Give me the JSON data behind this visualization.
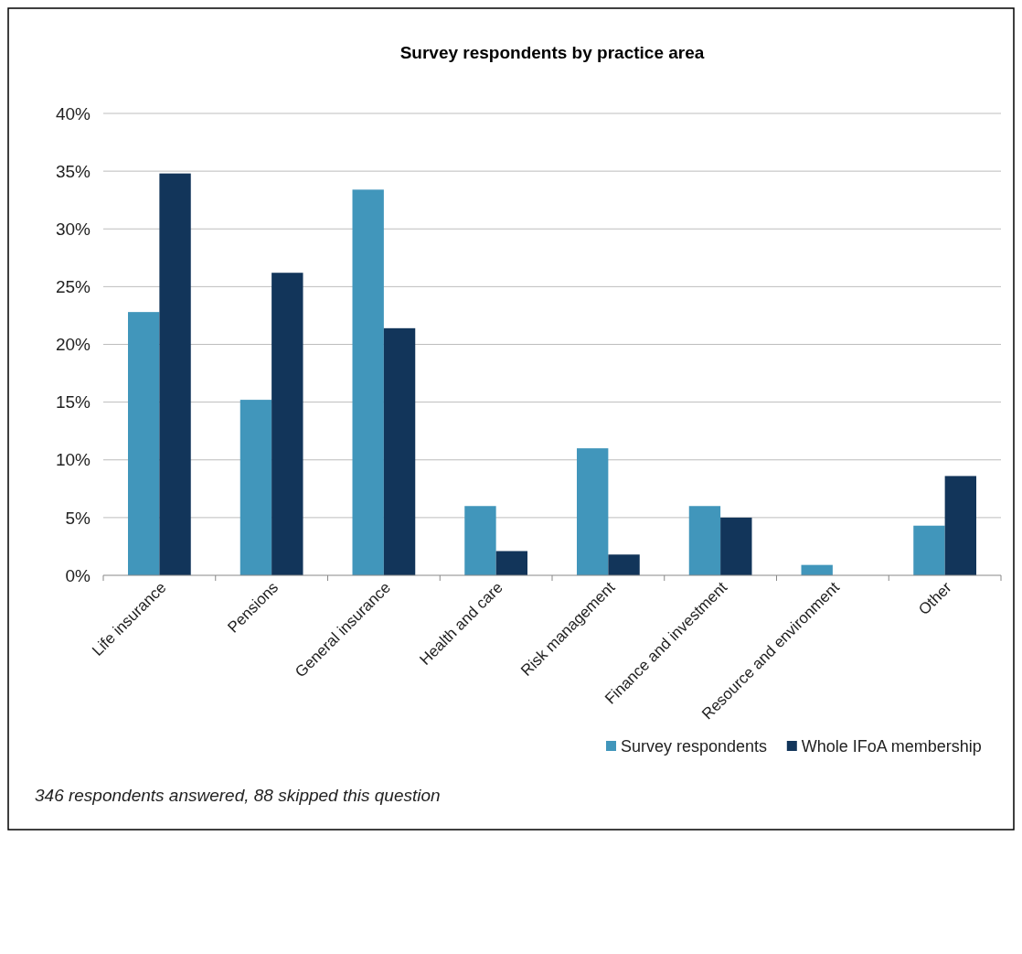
{
  "chart_data": {
    "type": "bar",
    "title": "Survey respondents by practice area",
    "categories": [
      "Life insurance",
      "Pensions",
      "General insurance",
      "Health and care",
      "Risk management",
      "Finance and investment",
      "Resource and environment",
      "Other"
    ],
    "series": [
      {
        "name": "Survey respondents",
        "color": "#4196bb",
        "values": [
          22.8,
          15.2,
          33.4,
          6.0,
          11.0,
          6.0,
          0.9,
          4.3
        ]
      },
      {
        "name": "Whole IFoA membership",
        "color": "#12355a",
        "values": [
          34.8,
          26.2,
          21.4,
          2.1,
          1.8,
          5.0,
          0,
          8.6
        ]
      }
    ],
    "ylim": [
      0,
      40
    ],
    "yticks": [
      {
        "value": 0,
        "label": "0%"
      },
      {
        "value": 5,
        "label": "5%"
      },
      {
        "value": 10,
        "label": "10%"
      },
      {
        "value": 15,
        "label": "15%"
      },
      {
        "value": 20,
        "label": "20%"
      },
      {
        "value": 25,
        "label": "25%"
      },
      {
        "value": 30,
        "label": "30%"
      },
      {
        "value": 35,
        "label": "35%"
      },
      {
        "value": 40,
        "label": "40%"
      }
    ],
    "grid": "y",
    "legend": "bottom right",
    "annotations": [
      "346 respondents answered, 88 skipped this question"
    ]
  }
}
